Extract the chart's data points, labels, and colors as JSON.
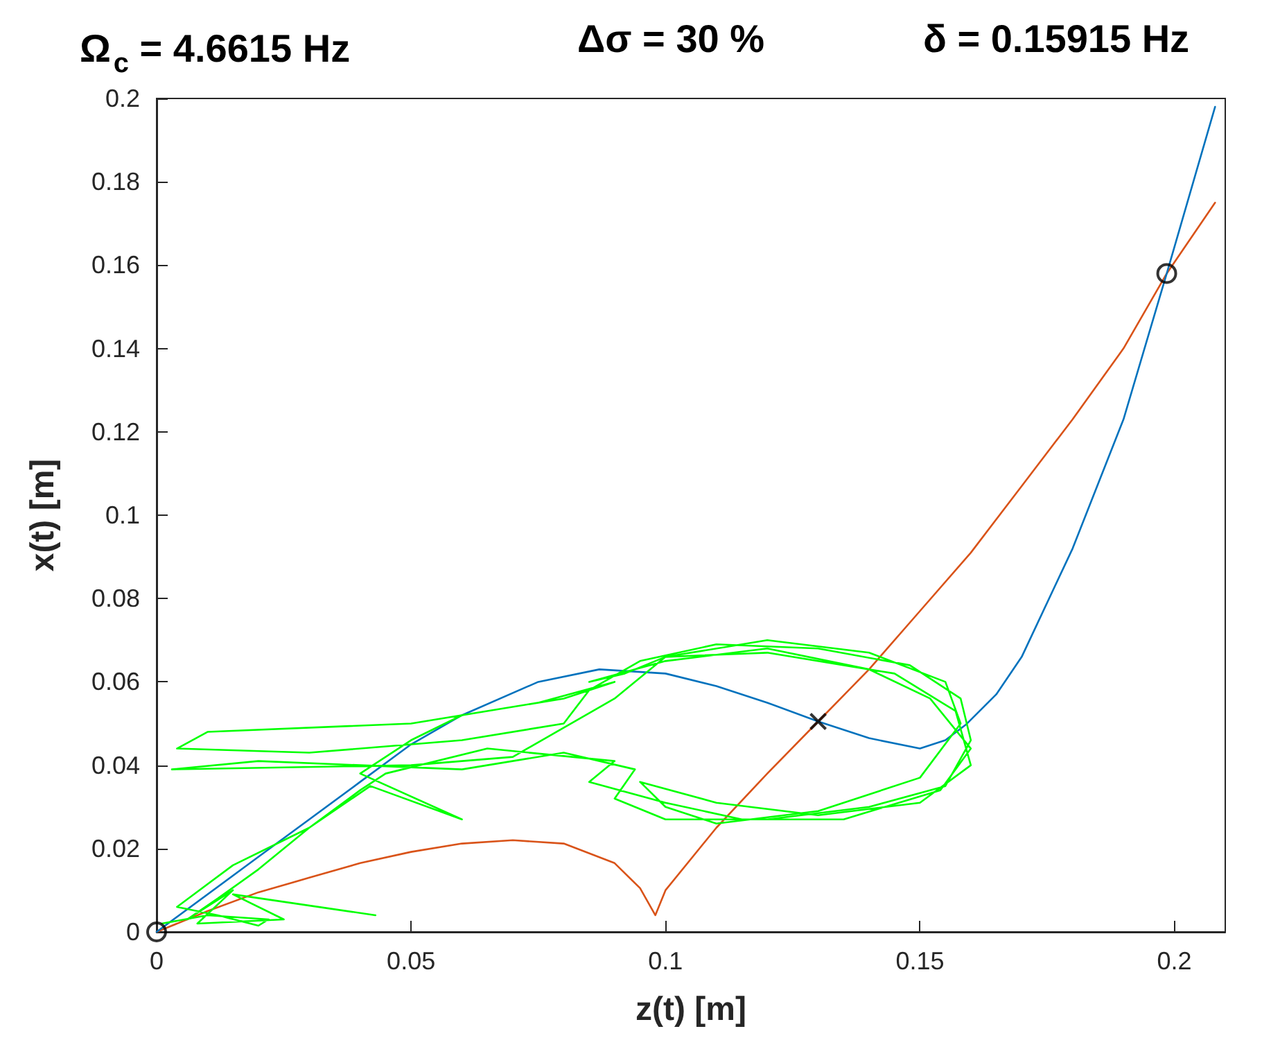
{
  "chart_data": {
    "type": "line",
    "title": "Ω$_{c}$ = 4.6615 Hz     Δσ = 30 %     δ = 0.15915 Hz",
    "xlabel": "z(t) [m]",
    "ylabel": "x(t) [m]",
    "xlim": [
      0,
      0.21
    ],
    "xticks": [
      0,
      0.05,
      0.1,
      0.15,
      0.2
    ],
    "ylim": [
      0,
      0.2
    ],
    "yticks": [
      0,
      0.02,
      0.04,
      0.06,
      0.08,
      0.1,
      0.12,
      0.14,
      0.16,
      0.18,
      0.2
    ],
    "grid": false,
    "marker": "none",
    "line_style": "solid",
    "series": [
      {
        "color": "#d95319",
        "x": [
          0,
          0.01,
          0.02,
          0.03,
          0.04,
          0.05,
          0.06,
          0.07,
          0.08,
          0.09,
          0.095,
          0.098,
          0.1,
          0.11,
          0.12,
          0.13,
          0.14,
          0.15,
          0.16,
          0.17,
          0.18,
          0.19,
          0.1985,
          0.208
        ],
        "values": [
          0,
          0.005,
          0.0095,
          0.013,
          0.0165,
          0.0192,
          0.0212,
          0.022,
          0.0212,
          0.0165,
          0.0105,
          0.004,
          0.01,
          0.025,
          0.038,
          0.0505,
          0.063,
          0.077,
          0.091,
          0.107,
          0.123,
          0.14,
          0.158,
          0.175
        ]
      },
      {
        "color": "#0072bd",
        "x": [
          0,
          0.02,
          0.04,
          0.05,
          0.06,
          0.075,
          0.087,
          0.1,
          0.11,
          0.12,
          0.13,
          0.14,
          0.15,
          0.155,
          0.159,
          0.165,
          0.17,
          0.18,
          0.19,
          0.1985,
          0.208
        ],
        "values": [
          0,
          0.018,
          0.036,
          0.045,
          0.052,
          0.06,
          0.063,
          0.062,
          0.059,
          0.055,
          0.0505,
          0.0465,
          0.044,
          0.046,
          0.0497,
          0.057,
          0.066,
          0.092,
          0.123,
          0.158,
          0.198
        ]
      },
      {
        "color": "#00ff00",
        "x": [
          0.001,
          0.01,
          0.022,
          0.02,
          0.012,
          0.004,
          0.015,
          0.03,
          0.042,
          0.06,
          0.04,
          0.05,
          0.06,
          0.08,
          0.09,
          0.075,
          0.05,
          0.01,
          0.004,
          0.03,
          0.06,
          0.08,
          0.085,
          0.095,
          0.11,
          0.13,
          0.148,
          0.158,
          0.16,
          0.155,
          0.14,
          0.12,
          0.1,
          0.09,
          0.094,
          0.08,
          0.06,
          0.02,
          0.003,
          0.05,
          0.07,
          0.09,
          0.1,
          0.12,
          0.14,
          0.155,
          0.158,
          0.15,
          0.13,
          0.11,
          0.1,
          0.095,
          0.11,
          0.13,
          0.15,
          0.16,
          0.157,
          0.145,
          0.12,
          0.1,
          0.092,
          0.085,
          0.1,
          0.12,
          0.14,
          0.152,
          0.16,
          0.154,
          0.135,
          0.115,
          0.1,
          0.085,
          0.09,
          0.065,
          0.045,
          0.04,
          0.03,
          0.02,
          0.012,
          0.006,
          0.015,
          0.008,
          0.025,
          0.015,
          0.043
        ],
        "values": [
          0.002,
          0.004,
          0.003,
          0.0015,
          0.004,
          0.006,
          0.016,
          0.025,
          0.035,
          0.027,
          0.038,
          0.046,
          0.052,
          0.056,
          0.06,
          0.055,
          0.05,
          0.048,
          0.044,
          0.043,
          0.046,
          0.05,
          0.058,
          0.065,
          0.069,
          0.068,
          0.064,
          0.056,
          0.046,
          0.035,
          0.03,
          0.027,
          0.027,
          0.032,
          0.039,
          0.043,
          0.039,
          0.041,
          0.039,
          0.04,
          0.042,
          0.056,
          0.066,
          0.07,
          0.067,
          0.06,
          0.05,
          0.037,
          0.029,
          0.026,
          0.03,
          0.036,
          0.031,
          0.028,
          0.031,
          0.04,
          0.053,
          0.062,
          0.067,
          0.066,
          0.062,
          0.06,
          0.065,
          0.068,
          0.063,
          0.056,
          0.044,
          0.034,
          0.027,
          0.027,
          0.031,
          0.036,
          0.041,
          0.044,
          0.038,
          0.034,
          0.025,
          0.015,
          0.008,
          0.003,
          0.01,
          0.002,
          0.003,
          0.009,
          0.004
        ]
      },
      {
        "type": "scatter",
        "marker": "circle",
        "color": "#000000",
        "x": [
          0,
          0.1985
        ],
        "values": [
          0,
          0.158
        ]
      },
      {
        "type": "scatter",
        "marker": "cross",
        "color": "#000000",
        "x": [
          0.13
        ],
        "values": [
          0.0505
        ]
      }
    ]
  }
}
